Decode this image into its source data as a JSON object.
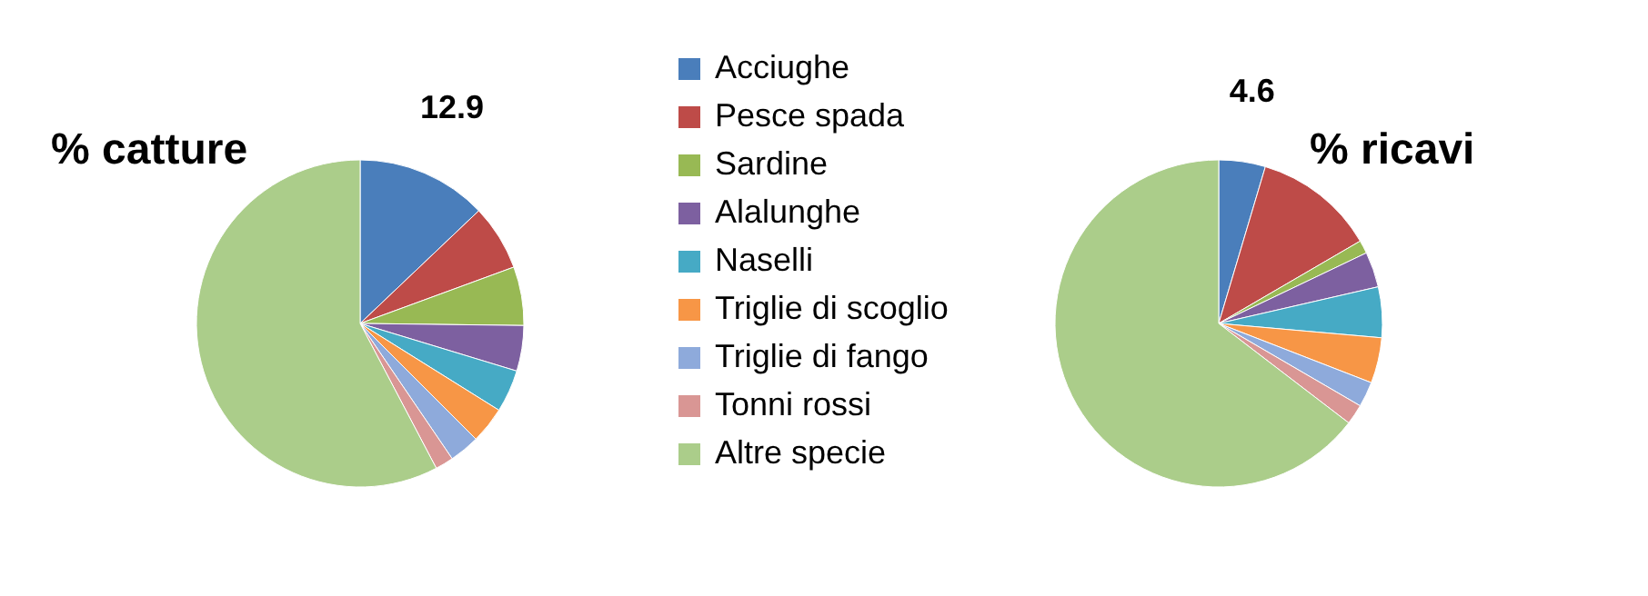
{
  "chart_data": {
    "type": "pie",
    "categories": [
      "Acciughe",
      "Pesce spada",
      "Sardine",
      "Alalunghe",
      "Naselli",
      "Triglie di scoglio",
      "Triglie di fango",
      "Tonni rossi",
      "Altre specie"
    ],
    "colors": [
      "#4a7ebb",
      "#be4b48",
      "#98b954",
      "#7d60a0",
      "#46aac5",
      "#f79646",
      "#8eaadb",
      "#d99694",
      "#abcd8a"
    ],
    "legend": "top",
    "series": [
      {
        "name": "% catture",
        "values": [
          12.9,
          6.5,
          5.8,
          4.5,
          4.2,
          3.6,
          3.0,
          1.8,
          57.7
        ],
        "value_labels": [
          "12.9",
          null,
          null,
          null,
          null,
          null,
          null,
          null,
          null
        ]
      },
      {
        "name": "% ricavi",
        "values": [
          4.6,
          12.0,
          1.3,
          3.5,
          5.0,
          4.5,
          2.5,
          2.0,
          64.6
        ],
        "value_labels": [
          "4.6",
          null,
          null,
          null,
          null,
          null,
          null,
          null,
          null
        ]
      }
    ]
  }
}
